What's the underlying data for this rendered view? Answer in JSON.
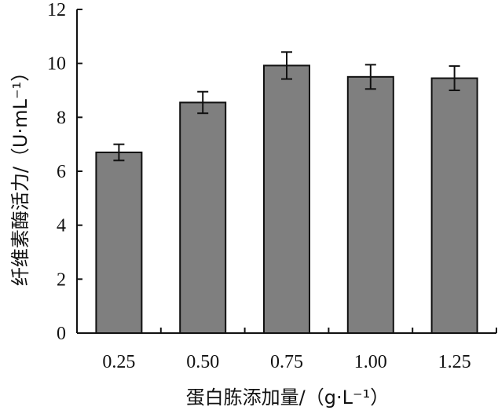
{
  "chart_data": {
    "type": "bar",
    "categories": [
      "0.25",
      "0.50",
      "0.75",
      "1.00",
      "1.25"
    ],
    "values": [
      6.7,
      8.55,
      9.92,
      9.5,
      9.45
    ],
    "errors": [
      0.3,
      0.4,
      0.5,
      0.45,
      0.45
    ],
    "xlabel": "蛋白胨添加量/（g·L⁻¹）",
    "ylabel": "纤维素酶活力/（U·mL⁻¹）",
    "ylim": [
      0,
      12
    ],
    "yticks": [
      0,
      2,
      4,
      6,
      8,
      10,
      12
    ],
    "bar_color": "#7f7f7f",
    "grid": false,
    "legend": "none"
  }
}
